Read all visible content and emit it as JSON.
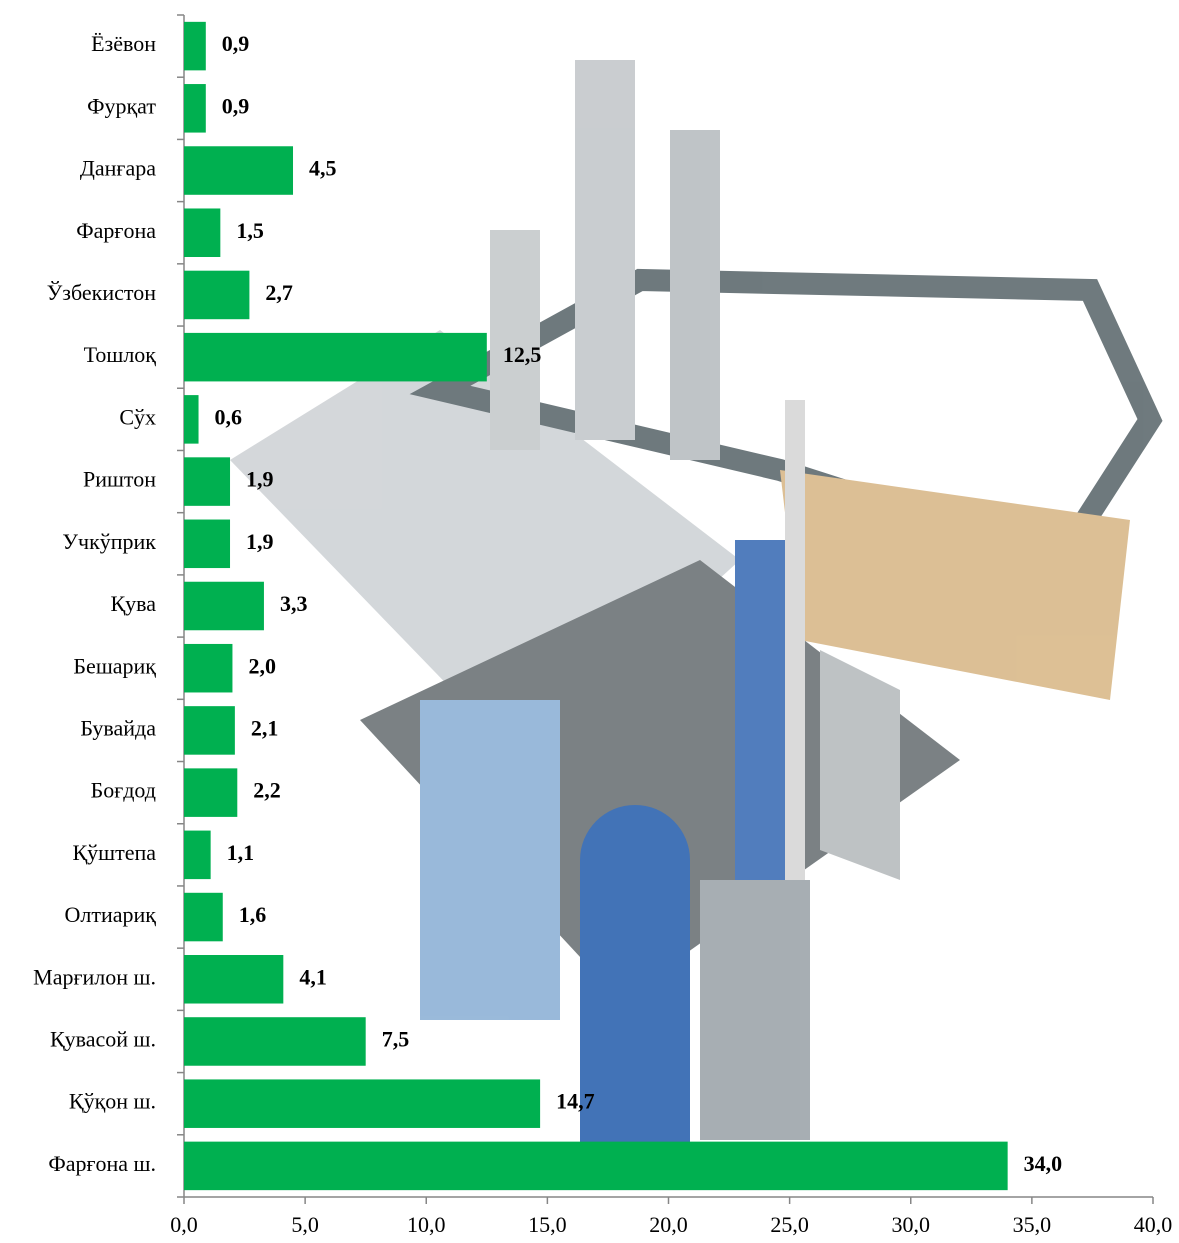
{
  "chart_data": {
    "type": "bar",
    "orientation": "horizontal",
    "categories": [
      "Ёзёвон",
      "Фурқат",
      "Данғара",
      "Фарғона",
      "Ўзбекистон",
      "Тошлоқ",
      "Сўх",
      "Риштон",
      "Учкўприк",
      "Қува",
      "Бешариқ",
      "Бувайда",
      "Боғдод",
      "Қўштепа",
      "Олтиариқ",
      "Марғилон ш.",
      "Қувасой ш.",
      "Қўқон ш.",
      "Фарғона ш."
    ],
    "values": [
      0.9,
      0.9,
      4.5,
      1.5,
      2.7,
      12.5,
      0.6,
      1.9,
      1.9,
      3.3,
      2.0,
      2.1,
      2.2,
      1.1,
      1.6,
      4.1,
      7.5,
      14.7,
      34.0
    ],
    "value_labels": [
      "0,9",
      "0,9",
      "4,5",
      "1,5",
      "2,7",
      "12,5",
      "0,6",
      "1,9",
      "1,9",
      "3,3",
      "2,0",
      "2,1",
      "2,2",
      "1,1",
      "1,6",
      "4,1",
      "7,5",
      "14,7",
      "34,0"
    ],
    "color": "#00b050",
    "xlim": [
      0,
      40
    ],
    "xticks": [
      {
        "value": 0,
        "label": "0,0"
      },
      {
        "value": 5,
        "label": "5,0"
      },
      {
        "value": 10,
        "label": "10,0"
      },
      {
        "value": 15,
        "label": "15,0"
      },
      {
        "value": 20,
        "label": "20,0"
      },
      {
        "value": 25,
        "label": "25,0"
      },
      {
        "value": 30,
        "label": "30,0"
      },
      {
        "value": 35,
        "label": "35,0"
      },
      {
        "value": 40,
        "label": "40,0"
      }
    ]
  }
}
